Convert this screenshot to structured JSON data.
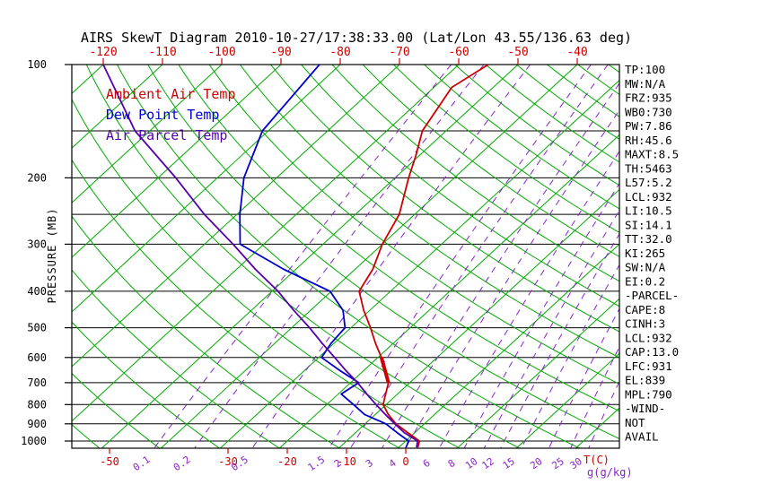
{
  "chart_data": {
    "type": "skewt",
    "title": "AIRS SkewT Diagram 2010-10-27/17:38:33.00 (Lat/Lon 43.55/136.63 deg)",
    "legend": [
      {
        "label": "Ambient Air Temp",
        "color": "#cc0000"
      },
      {
        "label": "Dew Point Temp",
        "color": "#0000cc"
      },
      {
        "label": "Air Parcel Temp",
        "color": "#5500aa"
      }
    ],
    "pressure_axis": {
      "label": "PRESSURE (MB)",
      "ticks": [
        100,
        200,
        300,
        400,
        500,
        600,
        700,
        800,
        900,
        1000
      ],
      "lines": [
        100,
        150,
        200,
        250,
        300,
        400,
        500,
        600,
        700,
        800,
        900,
        1000
      ],
      "range": [
        100,
        1045
      ]
    },
    "temp_axis": {
      "top_ticks": [
        -120,
        -110,
        -100,
        -90,
        -80,
        -70,
        -60,
        -50,
        -40
      ],
      "bottom_ticks": [
        -50,
        -30,
        -20,
        -10,
        0
      ],
      "unit_label": "T(C)"
    },
    "mixing_axis": {
      "values": [
        0.1,
        0.2,
        0.5,
        1.5,
        2,
        3,
        4,
        6,
        8,
        10,
        12,
        15,
        20,
        25,
        30
      ],
      "unit_label": "g(g/kg)"
    },
    "isotherms": {
      "min": -120,
      "max": 30,
      "step": 10
    },
    "dry_adiabats": {
      "min_K": 220,
      "max_K": 470,
      "step_K": 10
    },
    "series": [
      {
        "name": "Ambient Air Temp",
        "color": "#cc0000",
        "points": [
          [
            100,
            -55
          ],
          [
            115,
            -57
          ],
          [
            150,
            -54
          ],
          [
            175,
            -50.5
          ],
          [
            200,
            -47.7
          ],
          [
            250,
            -42.6
          ],
          [
            300,
            -40
          ],
          [
            350,
            -37
          ],
          [
            400,
            -35.3
          ],
          [
            450,
            -31
          ],
          [
            500,
            -26.7
          ],
          [
            550,
            -23
          ],
          [
            600,
            -19.4
          ],
          [
            650,
            -16.5
          ],
          [
            700,
            -13.6
          ],
          [
            750,
            -12
          ],
          [
            800,
            -10.5
          ],
          [
            850,
            -7.8
          ],
          [
            900,
            -4.8
          ],
          [
            950,
            -1.2
          ],
          [
            1000,
            2.3
          ],
          [
            1040,
            3.2
          ]
        ]
      },
      {
        "name": "Dew Point Temp",
        "color": "#0000cc",
        "points": [
          [
            100,
            -83.5
          ],
          [
            150,
            -81
          ],
          [
            200,
            -75.5
          ],
          [
            250,
            -69.5
          ],
          [
            300,
            -64
          ],
          [
            350,
            -52
          ],
          [
            400,
            -40.2
          ],
          [
            450,
            -34.5
          ],
          [
            500,
            -31
          ],
          [
            550,
            -30.5
          ],
          [
            600,
            -29.5
          ],
          [
            650,
            -24
          ],
          [
            700,
            -18.6
          ],
          [
            750,
            -19.5
          ],
          [
            800,
            -15.5
          ],
          [
            850,
            -11.8
          ],
          [
            900,
            -6.5
          ],
          [
            950,
            -3
          ],
          [
            1000,
            0.5
          ],
          [
            1040,
            1.2
          ]
        ]
      },
      {
        "name": "Air Parcel Temp",
        "color": "#5500aa",
        "points": [
          [
            100,
            -120
          ],
          [
            150,
            -102.5
          ],
          [
            200,
            -87
          ],
          [
            250,
            -75.5
          ],
          [
            300,
            -65.2
          ],
          [
            350,
            -56.8
          ],
          [
            400,
            -49
          ],
          [
            450,
            -42.8
          ],
          [
            500,
            -37
          ],
          [
            550,
            -32
          ],
          [
            600,
            -27.3
          ],
          [
            650,
            -23
          ],
          [
            700,
            -18.8
          ],
          [
            750,
            -15.2
          ],
          [
            800,
            -11.7
          ],
          [
            850,
            -8.3
          ],
          [
            900,
            -5
          ],
          [
            950,
            -1.8
          ],
          [
            1000,
            2
          ],
          [
            1040,
            3
          ]
        ]
      }
    ],
    "cap_segment": {
      "color": "#cc0000",
      "points": [
        [
          600,
          -19.4
        ],
        [
          700,
          -13.6
        ]
      ]
    },
    "colors": {
      "temp_red": "#cc0000",
      "grid_green": "#00aa00",
      "mixing_purple": "#8822cc",
      "axis_black": "#000000"
    }
  },
  "info_panel": {
    "lines": [
      "TP:100",
      "MW:N/A",
      "FRZ:935",
      "WB0:730",
      "PW:7.86",
      "RH:45.6",
      "MAXT:8.5",
      "TH:5463",
      "L57:5.2",
      "LCL:932",
      "LI:10.5",
      "SI:14.1",
      "TT:32.0",
      "KI:265",
      "SW:N/A",
      "EI:0.2",
      "-PARCEL-",
      "CAPE:8",
      "CINH:3",
      "LCL:932",
      "CAP:13.0",
      "LFC:931",
      "EL:839",
      "MPL:790",
      "-WIND-",
      "NOT",
      "AVAIL"
    ]
  }
}
